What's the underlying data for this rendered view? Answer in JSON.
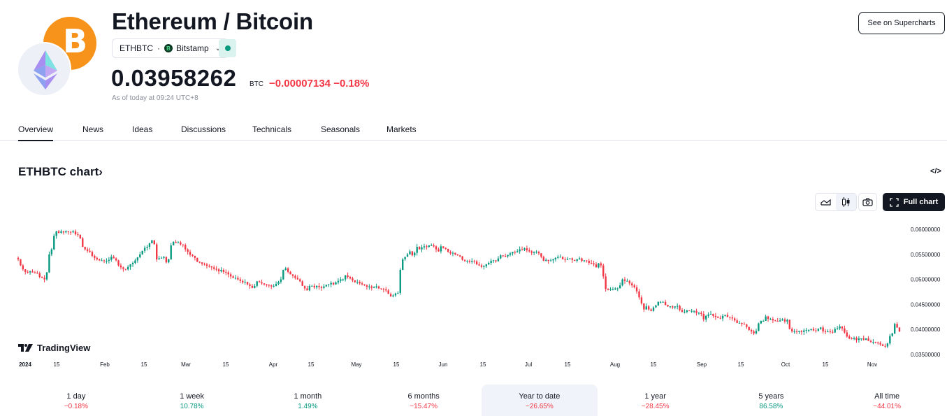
{
  "header": {
    "title": "Ethereum / Bitcoin",
    "symbol": "ETHBTC",
    "separator": "·",
    "exchange": "Bitstamp",
    "exchange_badge": "B",
    "market_status_color": "#089981",
    "price": "0.03958262",
    "currency": "BTC",
    "change_abs": "−0.00007134",
    "change_pct": "−0.18%",
    "as_of": "As of today at 09:24 UTC+8",
    "supercharts_button": "See on Supercharts"
  },
  "icons": {
    "base_logo": "bitcoin-icon",
    "quote_logo": "ethereum-icon",
    "btc_glyph": "B"
  },
  "tabs": [
    {
      "label": "Overview",
      "active": true
    },
    {
      "label": "News"
    },
    {
      "label": "Ideas"
    },
    {
      "label": "Discussions"
    },
    {
      "label": "Technicals"
    },
    {
      "label": "Seasonals"
    },
    {
      "label": "Markets"
    }
  ],
  "chart_section": {
    "title": "ETHBTC chart›",
    "embed_icon": "</>",
    "full_chart_label": "Full chart",
    "watermark": "TradingView"
  },
  "colors": {
    "up": "#089981",
    "down": "#f23645",
    "text": "#131722",
    "muted": "#8a8e99"
  },
  "chart_data": {
    "type": "candlestick",
    "title": "ETHBTC chart",
    "xlabel": "",
    "ylabel": "",
    "ylim": [
      0.0335,
      0.0615
    ],
    "y_ticks": [
      "0.06000000",
      "0.05500000",
      "0.05000000",
      "0.04500000",
      "0.04000000",
      "0.03500000"
    ],
    "x_ticks": [
      "2024",
      "15",
      "Feb",
      "15",
      "Mar",
      "15",
      "Apr",
      "15",
      "May",
      "15",
      "Jun",
      "15",
      "Jul",
      "15",
      "Aug",
      "15",
      "Sep",
      "15",
      "Oct",
      "15",
      "Nov"
    ],
    "x_tick_positions": [
      36,
      81,
      150,
      206,
      266,
      323,
      391,
      445,
      510,
      567,
      634,
      691,
      756,
      812,
      880,
      935,
      1004,
      1060,
      1124,
      1181,
      1248
    ],
    "grid": false,
    "interval": "1 day",
    "closes": [
      0.054,
      0.0528,
      0.052,
      0.0515,
      0.0514,
      0.0516,
      0.0514,
      0.0513,
      0.0512,
      0.0505,
      0.0503,
      0.05,
      0.0514,
      0.055,
      0.056,
      0.0587,
      0.0596,
      0.0593,
      0.0596,
      0.0594,
      0.0596,
      0.0595,
      0.0594,
      0.0596,
      0.059,
      0.0589,
      0.0582,
      0.0565,
      0.056,
      0.0557,
      0.0555,
      0.0547,
      0.0543,
      0.054,
      0.0538,
      0.0538,
      0.0537,
      0.0537,
      0.0539,
      0.0545,
      0.0542,
      0.0538,
      0.0528,
      0.0524,
      0.0521,
      0.052,
      0.0525,
      0.053,
      0.0533,
      0.0538,
      0.0544,
      0.055,
      0.0557,
      0.0563,
      0.0565,
      0.0572,
      0.0578,
      0.057,
      0.054,
      0.0542,
      0.0543,
      0.0545,
      0.0534,
      0.054,
      0.0568,
      0.0575,
      0.0573,
      0.0574,
      0.057,
      0.0569,
      0.056,
      0.0555,
      0.0549,
      0.0547,
      0.0543,
      0.0535,
      0.0534,
      0.0531,
      0.053,
      0.0527,
      0.0526,
      0.0524,
      0.0521,
      0.052,
      0.0516,
      0.0519,
      0.0515,
      0.0514,
      0.051,
      0.0506,
      0.0503,
      0.0503,
      0.05,
      0.0497,
      0.0494,
      0.0495,
      0.049,
      0.0487,
      0.0483,
      0.0487,
      0.0496,
      0.0494,
      0.0492,
      0.049,
      0.0489,
      0.0488,
      0.0486,
      0.0487,
      0.0491,
      0.0495,
      0.05,
      0.0519,
      0.0522,
      0.0515,
      0.051,
      0.0507,
      0.0503,
      0.05,
      0.0496,
      0.0487,
      0.0482,
      0.0478,
      0.0487,
      0.0487,
      0.0484,
      0.0487,
      0.0485,
      0.0483,
      0.0486,
      0.0489,
      0.049,
      0.0493,
      0.049,
      0.0494,
      0.0497,
      0.05,
      0.05,
      0.0508,
      0.0505,
      0.0502,
      0.0498,
      0.0495,
      0.0495,
      0.0492,
      0.049,
      0.0488,
      0.0485,
      0.0486,
      0.0483,
      0.0484,
      0.0486,
      0.0482,
      0.0481,
      0.048,
      0.0478,
      0.0471,
      0.0466,
      0.0468,
      0.0472,
      0.0473,
      0.0519,
      0.054,
      0.0545,
      0.055,
      0.0556,
      0.0548,
      0.0553,
      0.0565,
      0.056,
      0.0564,
      0.0566,
      0.0565,
      0.0568,
      0.0568,
      0.0566,
      0.056,
      0.0556,
      0.0566,
      0.0563,
      0.0561,
      0.0555,
      0.0552,
      0.0553,
      0.055,
      0.0548,
      0.0546,
      0.0539,
      0.0537,
      0.0537,
      0.0535,
      0.0537,
      0.0536,
      0.053,
      0.0528,
      0.0525,
      0.0526,
      0.053,
      0.0533,
      0.0537,
      0.0538,
      0.0536,
      0.0542,
      0.0548,
      0.0547,
      0.0546,
      0.0549,
      0.0552,
      0.0555,
      0.0554,
      0.0556,
      0.056,
      0.0559,
      0.0562,
      0.0558,
      0.0556,
      0.0553,
      0.0555,
      0.0555,
      0.0552,
      0.0545,
      0.0537,
      0.0539,
      0.0537,
      0.0538,
      0.054,
      0.0543,
      0.0545,
      0.0545,
      0.054,
      0.0539,
      0.0541,
      0.0542,
      0.0539,
      0.0537,
      0.054,
      0.0542,
      0.0537,
      0.0538,
      0.0537,
      0.0533,
      0.0532,
      0.053,
      0.0524,
      0.0532,
      0.0528,
      0.0506,
      0.0481,
      0.0479,
      0.048,
      0.048,
      0.0482,
      0.0482,
      0.0488,
      0.05,
      0.0497,
      0.0497,
      0.0492,
      0.0488,
      0.0484,
      0.0476,
      0.0464,
      0.0452,
      0.044,
      0.0446,
      0.044,
      0.0437,
      0.0444,
      0.0448,
      0.0455,
      0.0455,
      0.0455,
      0.0449,
      0.0446,
      0.0446,
      0.0444,
      0.0446,
      0.0447,
      0.0439,
      0.0435,
      0.0435,
      0.0438,
      0.0437,
      0.0437,
      0.0437,
      0.0433,
      0.0433,
      0.0431,
      0.042,
      0.0427,
      0.043,
      0.0431,
      0.0427,
      0.0425,
      0.0423,
      0.0422,
      0.0427,
      0.0429,
      0.0425,
      0.0424,
      0.0422,
      0.0418,
      0.0413,
      0.0413,
      0.0411,
      0.041,
      0.0405,
      0.0399,
      0.0396,
      0.0392,
      0.0397,
      0.0412,
      0.0417,
      0.0417,
      0.0426,
      0.0421,
      0.0421,
      0.0418,
      0.0417,
      0.0416,
      0.0418,
      0.042,
      0.0416,
      0.0419,
      0.0401,
      0.0396,
      0.0396,
      0.0395,
      0.0397,
      0.0395,
      0.0398,
      0.0399,
      0.0399,
      0.0401,
      0.0398,
      0.0397,
      0.0401,
      0.0404,
      0.0396,
      0.0395,
      0.0396,
      0.0395,
      0.0394,
      0.0401,
      0.0402,
      0.0406,
      0.0402,
      0.0394,
      0.0386,
      0.0382,
      0.0381,
      0.0383,
      0.0379,
      0.0382,
      0.0382,
      0.0379,
      0.0382,
      0.0377,
      0.0375,
      0.0375,
      0.0374,
      0.0373,
      0.037,
      0.0367,
      0.0366,
      0.0372,
      0.0387,
      0.0392,
      0.0411,
      0.0404,
      0.0396
    ]
  },
  "performance": [
    {
      "label": "1 day",
      "value": "−0.18%",
      "dir": "neg"
    },
    {
      "label": "1 week",
      "value": "10.78%",
      "dir": "pos"
    },
    {
      "label": "1 month",
      "value": "1.49%",
      "dir": "pos"
    },
    {
      "label": "6 months",
      "value": "−15.47%",
      "dir": "neg"
    },
    {
      "label": "Year to date",
      "value": "−26.65%",
      "dir": "neg",
      "active": true
    },
    {
      "label": "1 year",
      "value": "−28.45%",
      "dir": "neg"
    },
    {
      "label": "5 years",
      "value": "86.58%",
      "dir": "pos"
    },
    {
      "label": "All time",
      "value": "−44.01%",
      "dir": "neg"
    }
  ]
}
